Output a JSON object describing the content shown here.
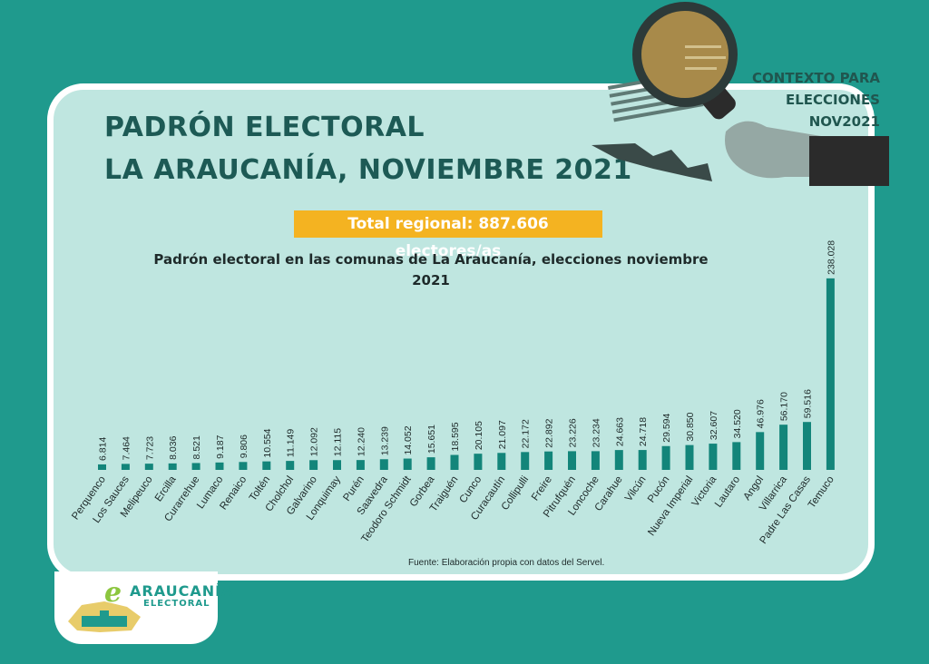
{
  "header": {
    "title_line1": "PADRÓN ELECTORAL",
    "title_line2": "LA ARAUCANÍA, NOVIEMBRE 2021",
    "total": "Total regional:  887.606 electores/as",
    "context": "CONTEXTO PARA ELECCIONES NOV2021"
  },
  "footer": {
    "source": "Fuente: Elaboración propia con datos del Servel.",
    "logo_name": "ARAUCANÍA",
    "logo_sub": "ELECTORAL"
  },
  "colors": {
    "background": "#1f9a8d",
    "card": "#bfe6e0",
    "bar": "#13857a",
    "highlight": "#f4b321",
    "title": "#1d5a55"
  },
  "chart_data": {
    "type": "bar",
    "title": "Padrón electoral en las comunas de La Araucanía, elecciones noviembre 2021",
    "categories": [
      "Perquenco",
      "Los Sauces",
      "Melipeuco",
      "Ercilla",
      "Curarrehue",
      "Lumaco",
      "Renaico",
      "Toltén",
      "Cholchol",
      "Galvarino",
      "Lonquimay",
      "Purén",
      "Saavedra",
      "Teodoro Schmidt",
      "Gorbea",
      "Traiguén",
      "Cunco",
      "Curacautín",
      "Collipulli",
      "Freire",
      "Pitrufquén",
      "Loncoche",
      "Carahue",
      "Vilcún",
      "Pucón",
      "Nueva Imperial",
      "Victoria",
      "Lautaro",
      "Angol",
      "Villarrica",
      "Padre Las Casas",
      "Temuco"
    ],
    "values": [
      6814,
      7464,
      7723,
      8036,
      8521,
      9187,
      9806,
      10554,
      11149,
      12092,
      12115,
      12240,
      13239,
      14052,
      15651,
      18595,
      20105,
      21097,
      22172,
      22892,
      23226,
      23234,
      24663,
      24718,
      29594,
      30850,
      32607,
      34520,
      46976,
      56170,
      59516,
      238028
    ],
    "value_labels": [
      "6.814",
      "7.464",
      "7.723",
      "8.036",
      "8.521",
      "9.187",
      "9.806",
      "10.554",
      "11.149",
      "12.092",
      "12.115",
      "12.240",
      "13.239",
      "14.052",
      "15.651",
      "18.595",
      "20.105",
      "21.097",
      "22.172",
      "22.892",
      "23.226",
      "23.234",
      "24.663",
      "24.718",
      "29.594",
      "30.850",
      "32.607",
      "34.520",
      "46.976",
      "56.170",
      "59.516",
      "238.028"
    ],
    "xlabel": "",
    "ylabel": "",
    "grid": false,
    "legend": "none"
  }
}
